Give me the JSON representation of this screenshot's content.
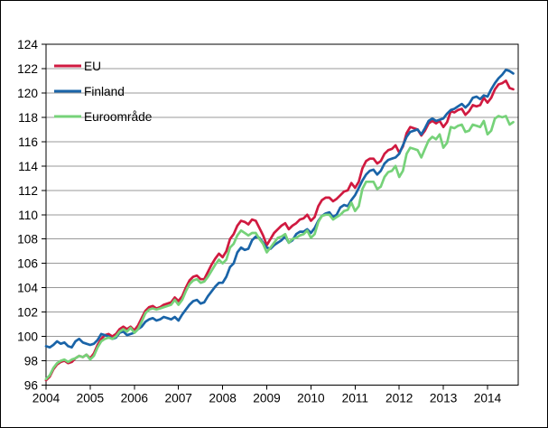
{
  "chart_data": {
    "type": "line",
    "title": "",
    "x": {
      "frequency": "monthly",
      "start_year": 2004,
      "start_month": 1,
      "points": 128,
      "tick_labels": [
        "2004",
        "2005",
        "2006",
        "2007",
        "2008",
        "2009",
        "2010",
        "2011",
        "2012",
        "2013",
        "2014"
      ]
    },
    "y": {
      "min": 96,
      "max": 124,
      "step": 2,
      "tick_labels": [
        "96",
        "98",
        "100",
        "102",
        "104",
        "106",
        "108",
        "110",
        "112",
        "114",
        "116",
        "118",
        "120",
        "122",
        "124"
      ]
    },
    "grid": true,
    "grid_color": "#999999",
    "axis_color": "#000000",
    "legend": {
      "position": "top-left",
      "entries": [
        "EU",
        "Finland",
        "Euroområde"
      ]
    },
    "series": [
      {
        "name": "EU",
        "color": "#d01a40",
        "values": [
          96.4,
          96.7,
          97.3,
          97.7,
          97.9,
          98.0,
          97.8,
          97.9,
          98.2,
          98.4,
          98.3,
          98.5,
          98.2,
          98.6,
          99.3,
          99.8,
          100.1,
          100.2,
          100.0,
          100.2,
          100.6,
          100.8,
          100.6,
          100.8,
          100.5,
          100.9,
          101.5,
          102.1,
          102.4,
          102.5,
          102.3,
          102.4,
          102.6,
          102.7,
          102.8,
          103.2,
          102.9,
          103.3,
          104.0,
          104.6,
          104.9,
          105.0,
          104.7,
          104.7,
          105.3,
          105.9,
          106.4,
          106.8,
          106.5,
          107.0,
          108.0,
          108.4,
          109.1,
          109.5,
          109.4,
          109.2,
          109.6,
          109.5,
          108.9,
          108.3,
          107.5,
          108.0,
          108.5,
          108.8,
          109.1,
          109.3,
          108.8,
          109.1,
          109.3,
          109.6,
          109.7,
          110.0,
          109.5,
          109.8,
          110.7,
          111.2,
          111.4,
          111.4,
          111.1,
          111.3,
          111.6,
          111.9,
          112.0,
          112.6,
          112.2,
          112.7,
          113.8,
          114.4,
          114.6,
          114.6,
          114.2,
          114.4,
          115.0,
          115.3,
          115.4,
          115.7,
          115.1,
          115.6,
          116.7,
          117.2,
          117.1,
          117.0,
          116.5,
          116.9,
          117.5,
          117.7,
          117.5,
          117.7,
          117.2,
          117.6,
          118.5,
          118.4,
          118.6,
          118.7,
          118.2,
          118.5,
          119.0,
          118.9,
          119.0,
          119.6,
          119.2,
          119.6,
          120.3,
          120.7,
          120.8,
          121.0,
          120.4,
          120.3
        ]
      },
      {
        "name": "Finland",
        "color": "#1a64a8",
        "values": [
          99.2,
          99.1,
          99.3,
          99.6,
          99.4,
          99.5,
          99.2,
          99.1,
          99.6,
          99.8,
          99.5,
          99.4,
          99.3,
          99.4,
          99.7,
          100.2,
          100.1,
          100.0,
          99.8,
          99.9,
          100.3,
          100.4,
          100.1,
          100.2,
          100.3,
          100.6,
          100.8,
          101.2,
          101.4,
          101.5,
          101.3,
          101.4,
          101.6,
          101.5,
          101.4,
          101.6,
          101.3,
          101.8,
          102.2,
          102.6,
          102.9,
          103.0,
          102.7,
          102.8,
          103.3,
          103.7,
          104.1,
          104.4,
          104.4,
          104.9,
          105.7,
          106.0,
          106.9,
          107.3,
          107.1,
          107.2,
          107.9,
          108.2,
          108.1,
          107.7,
          107.3,
          107.2,
          107.5,
          107.7,
          107.9,
          108.2,
          107.7,
          107.9,
          108.4,
          108.6,
          108.6,
          108.8,
          108.5,
          108.9,
          109.5,
          109.9,
          110.1,
          110.2,
          109.8,
          110.0,
          110.6,
          110.8,
          110.7,
          111.2,
          111.6,
          112.2,
          112.8,
          113.3,
          113.6,
          113.7,
          113.3,
          113.6,
          114.2,
          114.5,
          114.6,
          114.7,
          115.0,
          115.7,
          116.4,
          116.8,
          116.9,
          117.0,
          116.6,
          117.1,
          117.7,
          117.9,
          117.7,
          117.8,
          117.9,
          118.3,
          118.6,
          118.7,
          118.9,
          119.1,
          118.8,
          119.1,
          119.6,
          119.7,
          119.5,
          119.8,
          119.7,
          120.3,
          120.8,
          121.2,
          121.5,
          121.9,
          121.8,
          121.6
        ]
      },
      {
        "name": "Euroområde",
        "color": "#76d279",
        "values": [
          96.5,
          96.8,
          97.4,
          97.8,
          98.0,
          98.1,
          97.9,
          98.1,
          98.2,
          98.4,
          98.3,
          98.5,
          98.1,
          98.4,
          99.1,
          99.6,
          99.8,
          99.9,
          99.8,
          100.0,
          100.4,
          100.6,
          100.4,
          100.7,
          100.3,
          100.6,
          101.2,
          101.9,
          102.2,
          102.3,
          102.2,
          102.3,
          102.4,
          102.5,
          102.6,
          103.0,
          102.6,
          103.0,
          103.7,
          104.3,
          104.6,
          104.7,
          104.4,
          104.5,
          104.9,
          105.4,
          105.9,
          106.3,
          106.0,
          106.3,
          107.3,
          107.6,
          108.3,
          108.7,
          108.5,
          108.3,
          108.5,
          108.5,
          108.0,
          107.6,
          106.9,
          107.3,
          107.7,
          108.1,
          108.2,
          108.4,
          107.7,
          108.0,
          108.1,
          108.3,
          108.4,
          108.7,
          108.1,
          108.4,
          109.4,
          109.9,
          110.0,
          110.0,
          109.6,
          109.8,
          110.0,
          110.3,
          110.4,
          111.0,
          110.3,
          110.7,
          112.1,
          112.7,
          112.7,
          112.7,
          112.1,
          112.3,
          113.1,
          113.5,
          113.6,
          114.0,
          113.1,
          113.6,
          115.0,
          115.5,
          115.4,
          115.3,
          114.7,
          115.4,
          116.1,
          116.4,
          116.2,
          116.6,
          115.5,
          115.9,
          117.2,
          117.1,
          117.3,
          117.4,
          116.8,
          116.9,
          117.4,
          117.3,
          117.2,
          117.7,
          116.6,
          116.9,
          117.9,
          118.1,
          118.0,
          118.1,
          117.4,
          117.6
        ]
      }
    ]
  }
}
